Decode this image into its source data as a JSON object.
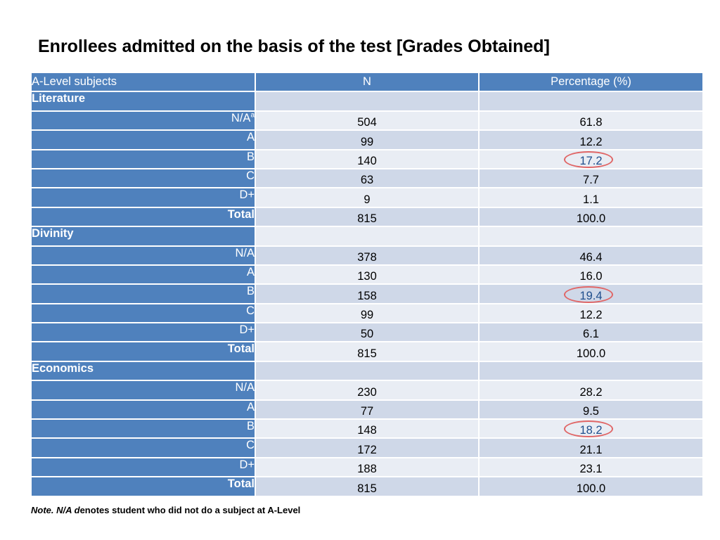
{
  "title": "Enrollees admitted on the basis of the test [Grades Obtained]",
  "table": {
    "headers": [
      "A-Level subjects",
      "N",
      "Percentage (%)"
    ],
    "groups": [
      {
        "subject": "Literature",
        "rows": [
          {
            "grade": "N/A",
            "sup": "a",
            "n": "504",
            "pct": "61.8"
          },
          {
            "grade": "A",
            "n": "99",
            "pct": "12.2"
          },
          {
            "grade": "B",
            "n": "140",
            "pct": "17.2",
            "highlight": true
          },
          {
            "grade": "C",
            "n": "63",
            "pct": "7.7"
          },
          {
            "grade": "D+",
            "n": "9",
            "pct": "1.1"
          },
          {
            "grade": "Total",
            "n": "815",
            "pct": "100.0",
            "total": true
          }
        ]
      },
      {
        "subject": "Divinity",
        "rows": [
          {
            "grade": "N/A",
            "n": "378",
            "pct": "46.4"
          },
          {
            "grade": "A",
            "n": "130",
            "pct": "16.0"
          },
          {
            "grade": "B",
            "n": "158",
            "pct": "19.4",
            "highlight": true
          },
          {
            "grade": "C",
            "n": "99",
            "pct": "12.2"
          },
          {
            "grade": "D+",
            "n": "50",
            "pct": "6.1"
          },
          {
            "grade": "Total",
            "n": "815",
            "pct": "100.0",
            "total": true
          }
        ]
      },
      {
        "subject": "Economics",
        "rows": [
          {
            "grade": "N/A",
            "n": "230",
            "pct": "28.2"
          },
          {
            "grade": "A",
            "n": "77",
            "pct": "9.5"
          },
          {
            "grade": "B",
            "n": "148",
            "pct": "18.2",
            "highlight": true
          },
          {
            "grade": "C",
            "n": "172",
            "pct": "21.1"
          },
          {
            "grade": "D+",
            "n": "188",
            "pct": "23.1"
          },
          {
            "grade": "Total",
            "n": "815",
            "pct": "100.0",
            "total": true
          }
        ]
      }
    ]
  },
  "note": {
    "prefix": "Note. N/A d",
    "rest": "enotes student who did not do a subject at A-Level"
  },
  "colors": {
    "header_blue": "#4f81bd",
    "band_dark": "#cfd8e8",
    "band_light": "#e9edf4",
    "highlight_ring": "#e06666"
  }
}
